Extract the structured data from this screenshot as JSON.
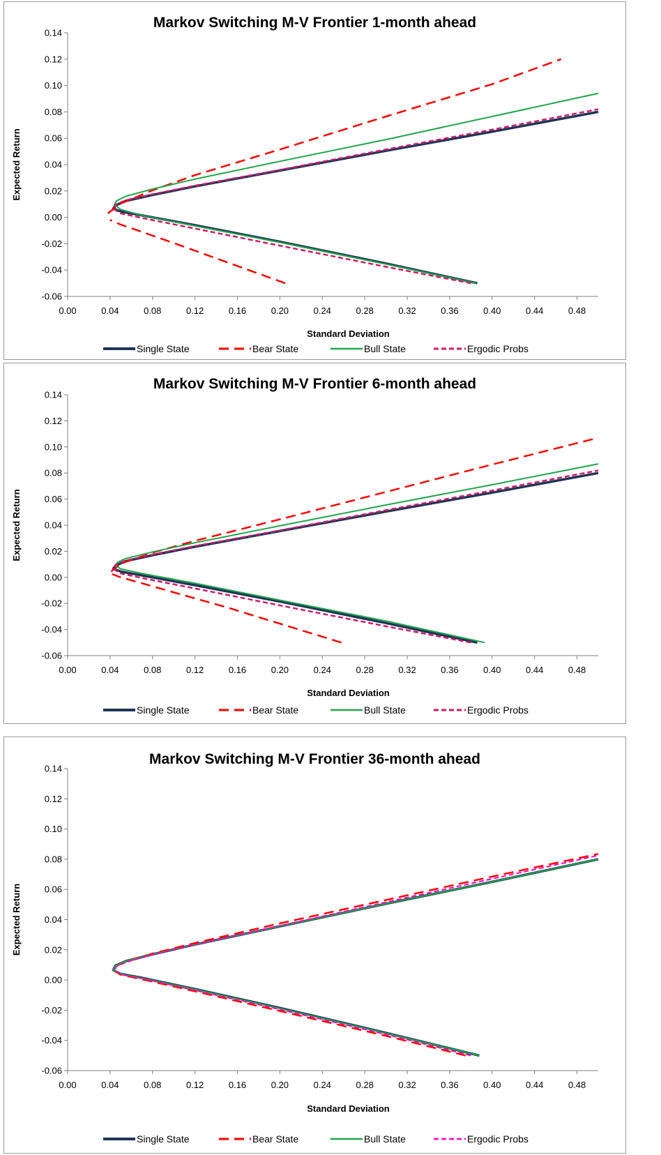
{
  "chart_data": [
    {
      "type": "line",
      "title": "Markov Switching M-V Frontier 1-month ahead",
      "xlabel": "Standard Deviation",
      "ylabel": "Expected Return",
      "xlim": [
        0,
        0.5
      ],
      "ylim": [
        -0.06,
        0.14
      ],
      "xticks": [
        "0.00",
        "0.04",
        "0.08",
        "0.12",
        "0.16",
        "0.20",
        "0.24",
        "0.28",
        "0.32",
        "0.36",
        "0.40",
        "0.44",
        "0.48"
      ],
      "yticks": [
        "-0.06",
        "-0.04",
        "-0.02",
        "0.00",
        "0.02",
        "0.04",
        "0.06",
        "0.08",
        "0.10",
        "0.12",
        "0.14"
      ],
      "grid": false,
      "legend_position": "bottom",
      "series": [
        {
          "name": "Single State",
          "color": "#1f3556",
          "dash": "solid",
          "width": 3.5,
          "points": [
            [
              0.386,
              -0.05
            ],
            [
              0.3,
              -0.035
            ],
            [
              0.2,
              -0.0185
            ],
            [
              0.12,
              -0.006
            ],
            [
              0.07,
              0.0015
            ],
            [
              0.05,
              0.0045
            ],
            [
              0.043,
              0.0065
            ],
            [
              0.045,
              0.009
            ],
            [
              0.055,
              0.0125
            ],
            [
              0.08,
              0.017
            ],
            [
              0.12,
              0.0235
            ],
            [
              0.2,
              0.0355
            ],
            [
              0.3,
              0.0505
            ],
            [
              0.4,
              0.065
            ],
            [
              0.5,
              0.08
            ]
          ]
        },
        {
          "name": "Bear State",
          "color": "#ff0000",
          "dash": "long",
          "width": 2.5,
          "segments": [
            [
              [
                0.205,
                -0.05
              ],
              [
                0.15,
                -0.034
              ],
              [
                0.1,
                -0.0195
              ],
              [
                0.07,
                -0.011
              ],
              [
                0.05,
                -0.0055
              ],
              [
                0.04,
                -0.002
              ]
            ],
            [
              [
                0.038,
                0.003
              ],
              [
                0.05,
                0.0105
              ],
              [
                0.08,
                0.0205
              ],
              [
                0.12,
                0.032
              ],
              [
                0.2,
                0.0515
              ],
              [
                0.3,
                0.0765
              ],
              [
                0.4,
                0.101
              ],
              [
                0.465,
                0.12
              ]
            ]
          ]
        },
        {
          "name": "Bull State",
          "color": "#21a54b",
          "dash": "solid",
          "width": 2,
          "points": [
            [
              0.385,
              -0.05
            ],
            [
              0.3,
              -0.0355
            ],
            [
              0.2,
              -0.019
            ],
            [
              0.12,
              -0.0065
            ],
            [
              0.07,
              0.0015
            ],
            [
              0.05,
              0.006
            ],
            [
              0.044,
              0.0095
            ],
            [
              0.046,
              0.0125
            ],
            [
              0.055,
              0.016
            ],
            [
              0.08,
              0.0215
            ],
            [
              0.12,
              0.029
            ],
            [
              0.2,
              0.0425
            ],
            [
              0.3,
              0.059
            ],
            [
              0.4,
              0.0765
            ],
            [
              0.5,
              0.094
            ]
          ]
        },
        {
          "name": "Ergodic Probs",
          "color": "#d01a6a",
          "dash": "short",
          "width": 2.5,
          "points": [
            [
              0.38,
              -0.05
            ],
            [
              0.3,
              -0.0375
            ],
            [
              0.2,
              -0.0215
            ],
            [
              0.12,
              -0.0085
            ],
            [
              0.07,
              -0.0005
            ],
            [
              0.05,
              0.003
            ],
            [
              0.043,
              0.0065
            ],
            [
              0.045,
              0.0095
            ],
            [
              0.055,
              0.013
            ],
            [
              0.08,
              0.0175
            ],
            [
              0.12,
              0.024
            ],
            [
              0.2,
              0.036
            ],
            [
              0.3,
              0.0515
            ],
            [
              0.4,
              0.0665
            ],
            [
              0.5,
              0.082
            ]
          ]
        }
      ]
    },
    {
      "type": "line",
      "title": "Markov Switching M-V Frontier 6-month ahead",
      "xlabel": "Standard Deviation",
      "ylabel": "Expected Return",
      "xlim": [
        0,
        0.5
      ],
      "ylim": [
        -0.06,
        0.14
      ],
      "xticks": [
        "0.00",
        "0.04",
        "0.08",
        "0.12",
        "0.16",
        "0.20",
        "0.24",
        "0.28",
        "0.32",
        "0.36",
        "0.40",
        "0.44",
        "0.48"
      ],
      "yticks": [
        "-0.06",
        "-0.04",
        "-0.02",
        "0.00",
        "0.02",
        "0.04",
        "0.06",
        "0.08",
        "0.10",
        "0.12",
        "0.14"
      ],
      "grid": false,
      "legend_position": "bottom",
      "series": [
        {
          "name": "Single State",
          "color": "#1f3556",
          "dash": "solid",
          "width": 3.5,
          "points": [
            [
              0.386,
              -0.05
            ],
            [
              0.3,
              -0.035
            ],
            [
              0.2,
              -0.0185
            ],
            [
              0.12,
              -0.006
            ],
            [
              0.07,
              0.0015
            ],
            [
              0.05,
              0.0045
            ],
            [
              0.043,
              0.0065
            ],
            [
              0.045,
              0.009
            ],
            [
              0.055,
              0.0125
            ],
            [
              0.08,
              0.017
            ],
            [
              0.12,
              0.0235
            ],
            [
              0.2,
              0.0355
            ],
            [
              0.3,
              0.0505
            ],
            [
              0.4,
              0.065
            ],
            [
              0.5,
              0.08
            ]
          ]
        },
        {
          "name": "Bear State",
          "color": "#ff0000",
          "dash": "long",
          "width": 2.5,
          "segments": [
            [
              [
                0.258,
                -0.05
              ],
              [
                0.2,
                -0.0355
              ],
              [
                0.15,
                -0.023
              ],
              [
                0.1,
                -0.0115
              ],
              [
                0.07,
                -0.0045
              ],
              [
                0.05,
                0.0
              ],
              [
                0.042,
                0.0025
              ]
            ],
            [
              [
                0.041,
                0.0045
              ],
              [
                0.05,
                0.0105
              ],
              [
                0.08,
                0.019
              ],
              [
                0.12,
                0.028
              ],
              [
                0.2,
                0.0445
              ],
              [
                0.3,
                0.0655
              ],
              [
                0.4,
                0.0865
              ],
              [
                0.5,
                0.107
              ]
            ]
          ]
        },
        {
          "name": "Bull State",
          "color": "#21a54b",
          "dash": "solid",
          "width": 2,
          "points": [
            [
              0.393,
              -0.05
            ],
            [
              0.3,
              -0.0335
            ],
            [
              0.2,
              -0.0175
            ],
            [
              0.12,
              -0.0045
            ],
            [
              0.07,
              0.003
            ],
            [
              0.05,
              0.0065
            ],
            [
              0.045,
              0.009
            ],
            [
              0.047,
              0.0115
            ],
            [
              0.055,
              0.0145
            ],
            [
              0.08,
              0.0195
            ],
            [
              0.12,
              0.0265
            ],
            [
              0.2,
              0.0395
            ],
            [
              0.3,
              0.0555
            ],
            [
              0.4,
              0.071
            ],
            [
              0.5,
              0.087
            ]
          ]
        },
        {
          "name": "Ergodic Probs",
          "color": "#d01a6a",
          "dash": "short",
          "width": 2.5,
          "points": [
            [
              0.38,
              -0.05
            ],
            [
              0.3,
              -0.0375
            ],
            [
              0.2,
              -0.0215
            ],
            [
              0.12,
              -0.0085
            ],
            [
              0.07,
              -0.0005
            ],
            [
              0.05,
              0.003
            ],
            [
              0.043,
              0.0065
            ],
            [
              0.045,
              0.0095
            ],
            [
              0.055,
              0.013
            ],
            [
              0.08,
              0.0175
            ],
            [
              0.12,
              0.024
            ],
            [
              0.2,
              0.036
            ],
            [
              0.3,
              0.0515
            ],
            [
              0.4,
              0.0665
            ],
            [
              0.5,
              0.082
            ]
          ]
        }
      ]
    },
    {
      "type": "line",
      "title": "Markov Switching M-V Frontier 36-month ahead",
      "xlabel": "Standard Deviation",
      "ylabel": "Expected Return",
      "xlim": [
        0,
        0.5
      ],
      "ylim": [
        -0.06,
        0.14
      ],
      "xticks": [
        "0.00",
        "0.04",
        "0.08",
        "0.12",
        "0.16",
        "0.20",
        "0.24",
        "0.28",
        "0.32",
        "0.36",
        "0.40",
        "0.44",
        "0.48"
      ],
      "yticks": [
        "-0.06",
        "-0.04",
        "-0.02",
        "0.00",
        "0.02",
        "0.04",
        "0.06",
        "0.08",
        "0.10",
        "0.12",
        "0.14"
      ],
      "grid": false,
      "legend_position": "bottom",
      "series": [
        {
          "name": "Single State",
          "color": "#1f3556",
          "dash": "solid",
          "width": 3.5,
          "points": [
            [
              0.388,
              -0.05
            ],
            [
              0.3,
              -0.035
            ],
            [
              0.2,
              -0.0185
            ],
            [
              0.12,
              -0.006
            ],
            [
              0.07,
              0.0015
            ],
            [
              0.05,
              0.004
            ],
            [
              0.043,
              0.0065
            ],
            [
              0.045,
              0.0095
            ],
            [
              0.055,
              0.0125
            ],
            [
              0.08,
              0.017
            ],
            [
              0.12,
              0.0235
            ],
            [
              0.2,
              0.0355
            ],
            [
              0.3,
              0.0505
            ],
            [
              0.4,
              0.065
            ],
            [
              0.5,
              0.08
            ]
          ]
        },
        {
          "name": "Bear State",
          "color": "#ff0000",
          "dash": "long",
          "width": 2.5,
          "points": [
            [
              0.375,
              -0.05
            ],
            [
              0.3,
              -0.037
            ],
            [
              0.2,
              -0.0205
            ],
            [
              0.12,
              -0.0075
            ],
            [
              0.07,
              0.0005
            ],
            [
              0.05,
              0.0035
            ],
            [
              0.043,
              0.0065
            ],
            [
              0.045,
              0.009
            ],
            [
              0.055,
              0.0125
            ],
            [
              0.08,
              0.0175
            ],
            [
              0.12,
              0.0245
            ],
            [
              0.2,
              0.0375
            ],
            [
              0.3,
              0.053
            ],
            [
              0.4,
              0.0685
            ],
            [
              0.5,
              0.0835
            ]
          ]
        },
        {
          "name": "Bull State",
          "color": "#21a54b",
          "dash": "solid",
          "width": 2,
          "points": [
            [
              0.388,
              -0.05
            ],
            [
              0.3,
              -0.0352
            ],
            [
              0.2,
              -0.0188
            ],
            [
              0.12,
              -0.0062
            ],
            [
              0.07,
              0.0013
            ],
            [
              0.05,
              0.004
            ],
            [
              0.043,
              0.0065
            ],
            [
              0.045,
              0.0095
            ],
            [
              0.055,
              0.0125
            ],
            [
              0.08,
              0.017
            ],
            [
              0.12,
              0.0235
            ],
            [
              0.2,
              0.0355
            ],
            [
              0.3,
              0.0505
            ],
            [
              0.4,
              0.065
            ],
            [
              0.5,
              0.08
            ]
          ]
        },
        {
          "name": "Ergodic Probs",
          "color": "#ff00cc",
          "dash": "short",
          "width": 2,
          "points": [
            [
              0.38,
              -0.05
            ],
            [
              0.3,
              -0.036
            ],
            [
              0.2,
              -0.0195
            ],
            [
              0.12,
              -0.0068
            ],
            [
              0.07,
              0.001
            ],
            [
              0.05,
              0.0038
            ],
            [
              0.044,
              0.0065
            ],
            [
              0.046,
              0.009
            ],
            [
              0.056,
              0.012
            ],
            [
              0.08,
              0.0168
            ],
            [
              0.12,
              0.0235
            ],
            [
              0.2,
              0.036
            ],
            [
              0.3,
              0.0515
            ],
            [
              0.4,
              0.067
            ],
            [
              0.5,
              0.0825
            ]
          ]
        }
      ]
    }
  ]
}
